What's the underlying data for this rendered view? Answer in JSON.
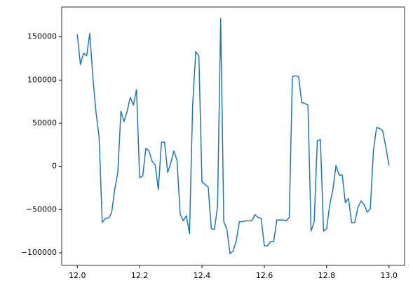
{
  "chart_data": {
    "type": "line",
    "x": [
      12.0,
      12.01,
      12.02,
      12.03,
      12.04,
      12.05,
      12.06,
      12.07,
      12.08,
      12.09,
      12.1,
      12.11,
      12.12,
      12.13,
      12.14,
      12.15,
      12.16,
      12.17,
      12.18,
      12.19,
      12.2,
      12.21,
      12.22,
      12.23,
      12.24,
      12.25,
      12.26,
      12.27,
      12.28,
      12.29,
      12.3,
      12.31,
      12.32,
      12.33,
      12.34,
      12.35,
      12.36,
      12.37,
      12.38,
      12.39,
      12.4,
      12.41,
      12.42,
      12.43,
      12.44,
      12.45,
      12.46,
      12.47,
      12.48,
      12.49,
      12.5,
      12.51,
      12.52,
      12.53,
      12.54,
      12.55,
      12.56,
      12.57,
      12.58,
      12.59,
      12.6,
      12.61,
      12.62,
      12.63,
      12.64,
      12.65,
      12.66,
      12.67,
      12.68,
      12.69,
      12.7,
      12.71,
      12.72,
      12.73,
      12.74,
      12.75,
      12.76,
      12.77,
      12.78,
      12.79,
      12.8,
      12.81,
      12.82,
      12.83,
      12.84,
      12.85,
      12.86,
      12.87,
      12.88,
      12.89,
      12.9,
      12.91,
      12.92,
      12.93,
      12.94,
      12.95,
      12.96,
      12.97,
      12.98,
      12.99,
      13.0
    ],
    "series": [
      {
        "color": "#1f77b4",
        "values": [
          153000,
          118000,
          131000,
          128000,
          154000,
          103000,
          63000,
          34000,
          -65000,
          -60000,
          -60000,
          -54000,
          -27000,
          -7000,
          64000,
          52000,
          64000,
          80000,
          71000,
          89000,
          -13000,
          -11000,
          21000,
          18000,
          6000,
          2000,
          -27000,
          28000,
          28000,
          -7000,
          4000,
          18000,
          7000,
          -55000,
          -63000,
          -57000,
          -78000,
          70000,
          133000,
          128000,
          -18000,
          -21000,
          -24000,
          -72000,
          -73000,
          -46000,
          171000,
          -64000,
          -73000,
          -101000,
          -98000,
          -86000,
          -64000,
          -64000,
          -63000,
          -63000,
          -63000,
          -56000,
          -59000,
          -60000,
          -92000,
          -92000,
          -87000,
          -87000,
          -62000,
          -62000,
          -62000,
          -63000,
          -59000,
          104000,
          105000,
          104000,
          74000,
          73000,
          71000,
          -75000,
          -64000,
          30000,
          31000,
          -75000,
          -72000,
          -44000,
          -27000,
          1000,
          -10000,
          -10000,
          -42000,
          -37000,
          -65000,
          -65000,
          -48000,
          -40000,
          -44000,
          -53000,
          -49000,
          18000,
          45000,
          44000,
          41000,
          22000,
          1000
        ]
      }
    ],
    "xlim": [
      11.95,
      13.05
    ],
    "ylim": [
      -114600,
      184600
    ],
    "xticks": [
      {
        "value": 12,
        "label": "12.0"
      },
      12.2,
      12.4,
      12.6,
      12.8,
      {
        "value": 13,
        "label": "13.0"
      }
    ],
    "yticks": [
      {
        "value": -100000,
        "label": "−100000"
      },
      {
        "value": -50000,
        "label": "−50000"
      },
      0,
      50000,
      100000,
      150000
    ]
  }
}
